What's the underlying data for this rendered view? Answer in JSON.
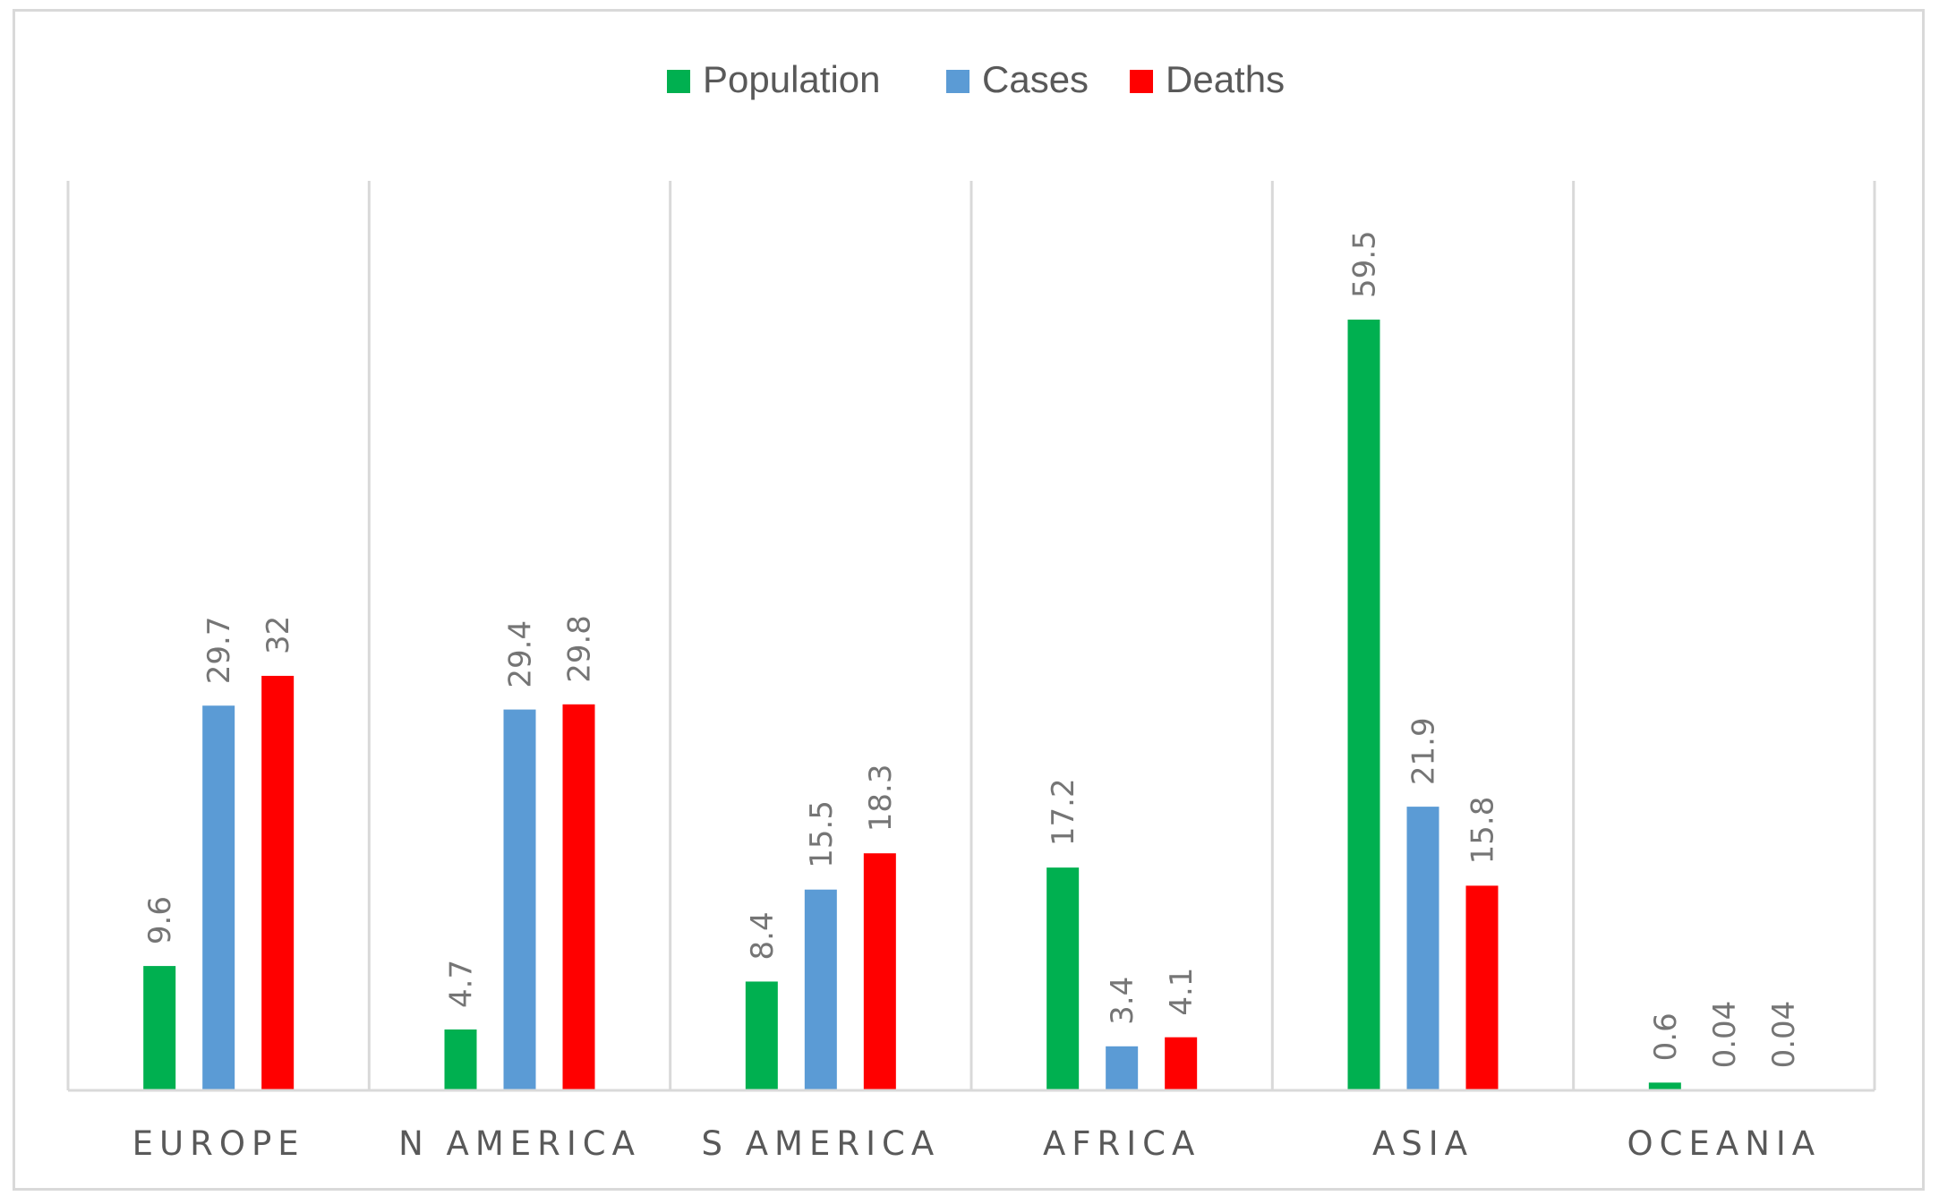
{
  "chart_data": {
    "type": "bar",
    "categories": [
      "EUROPE",
      "N AMERICA",
      "S AMERICA",
      "AFRICA",
      "ASIA",
      "OCEANIA"
    ],
    "series": [
      {
        "name": "Population",
        "color": "#00b050",
        "values": [
          9.6,
          4.7,
          8.4,
          17.2,
          59.5,
          0.6
        ],
        "labels": [
          "9.6",
          "4.7",
          "8.4",
          "17.2",
          "59.5",
          "0.6"
        ]
      },
      {
        "name": "Cases",
        "color": "#5b9bd5",
        "values": [
          29.7,
          29.4,
          15.5,
          3.4,
          21.9,
          0.04
        ],
        "labels": [
          "29.7",
          "29.4",
          "15.5",
          "3.4",
          "21.9",
          "0.04"
        ]
      },
      {
        "name": "Deaths",
        "color": "#ff0000",
        "values": [
          32,
          29.8,
          18.3,
          4.1,
          15.8,
          0.04
        ],
        "labels": [
          "32",
          "29.8",
          "18.3",
          "4.1",
          "15.8",
          "0.04"
        ]
      }
    ],
    "ylim": [
      0,
      70
    ],
    "grid": "vertical category separators",
    "legend": "top-center",
    "data_labels": "rotated, above bars"
  }
}
